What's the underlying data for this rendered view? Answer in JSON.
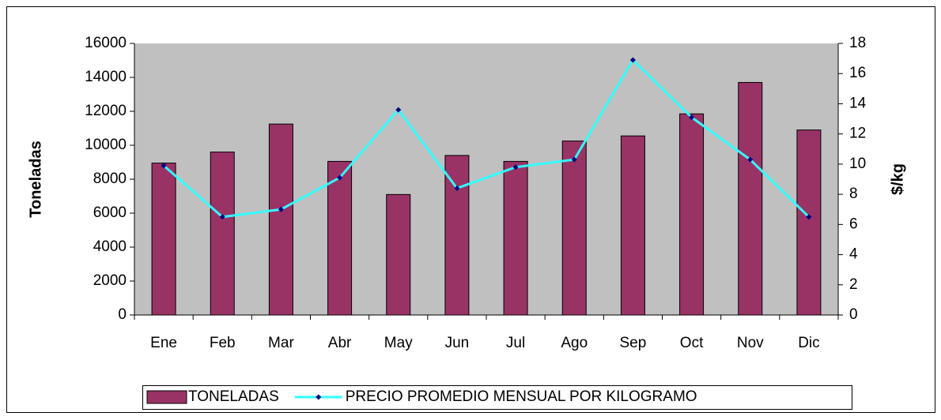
{
  "chart_data": {
    "type": "bar",
    "categories": [
      "Ene",
      "Feb",
      "Mar",
      "Abr",
      "May",
      "Jun",
      "Jul",
      "Ago",
      "Sep",
      "Oct",
      "Nov",
      "Dic"
    ],
    "series": [
      {
        "name": "TONELADAS",
        "type": "bar",
        "color": "#993366",
        "values": [
          8950,
          9600,
          11250,
          9050,
          7100,
          9400,
          9050,
          10250,
          10550,
          11850,
          13700,
          10900
        ]
      },
      {
        "name": "PRECIO PROMEDIO MENSUAL POR KILOGRAMO",
        "type": "line",
        "axis": "y2",
        "color": "#33ffff",
        "marker_color": "#000080",
        "values": [
          9.9,
          6.5,
          7.0,
          9.1,
          13.6,
          8.4,
          9.8,
          10.3,
          16.9,
          13.1,
          10.3,
          6.5
        ]
      }
    ],
    "ylabel": "Toneladas",
    "y2label": "$/kg",
    "ylim": [
      0,
      16000
    ],
    "yticks": [
      0,
      2000,
      4000,
      6000,
      8000,
      10000,
      12000,
      14000,
      16000
    ],
    "y2lim": [
      0,
      18
    ],
    "y2ticks": [
      0,
      2,
      4,
      6,
      8,
      10,
      12,
      14,
      16,
      18
    ],
    "plot_background": "#c0c0c0",
    "legend": "bottom"
  }
}
